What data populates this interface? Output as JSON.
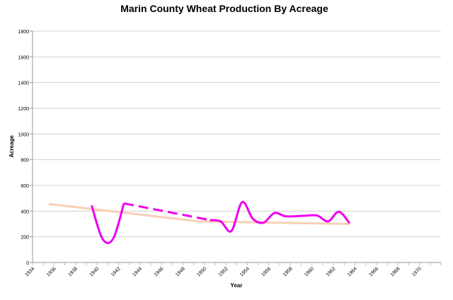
{
  "chart_data": {
    "type": "line",
    "title": "Marin County Wheat Production By Acreage",
    "xlabel": "Year",
    "ylabel": "Acreage",
    "xlim": [
      1934,
      1972
    ],
    "ylim": [
      0,
      1800
    ],
    "x_ticks": [
      "1934",
      "1936",
      "1938",
      "1940",
      "1942",
      "1944",
      "1946",
      "1948",
      "1950",
      "1952",
      "1954",
      "1956",
      "1958",
      "1960",
      "1962",
      "1964",
      "1966",
      "1968",
      "1970"
    ],
    "y_ticks": [
      "0",
      "200",
      "400",
      "600",
      "800",
      "1000",
      "1200",
      "1400",
      "1600",
      "1800"
    ],
    "grid": true,
    "series": [
      {
        "color": "#ee00ee",
        "style": "solid",
        "smooth": true,
        "x": [
          1939.5,
          1940.5,
          1941.5,
          1942.5
        ],
        "y": [
          445,
          185,
          185,
          460
        ]
      },
      {
        "color": "#ee00ee",
        "style": "dashed",
        "x": [
          1942.5,
          1950.5
        ],
        "y": [
          460,
          330
        ]
      },
      {
        "color": "#ee00ee",
        "style": "solid",
        "smooth": true,
        "x": [
          1950.5,
          1951.5,
          1952.5,
          1953.5,
          1954.5,
          1955.5,
          1956.5,
          1957.5,
          1958.5,
          1959.5,
          1960.5,
          1961.5,
          1962.5,
          1963.5
        ],
        "y": [
          330,
          320,
          245,
          470,
          340,
          310,
          385,
          360,
          360,
          365,
          365,
          320,
          395,
          305
        ]
      },
      {
        "color": "#f8cfb4",
        "style": "solid",
        "smooth": false,
        "x": [
          1935.5,
          1949.5,
          1963.5
        ],
        "y": [
          455,
          320,
          300
        ]
      }
    ]
  }
}
